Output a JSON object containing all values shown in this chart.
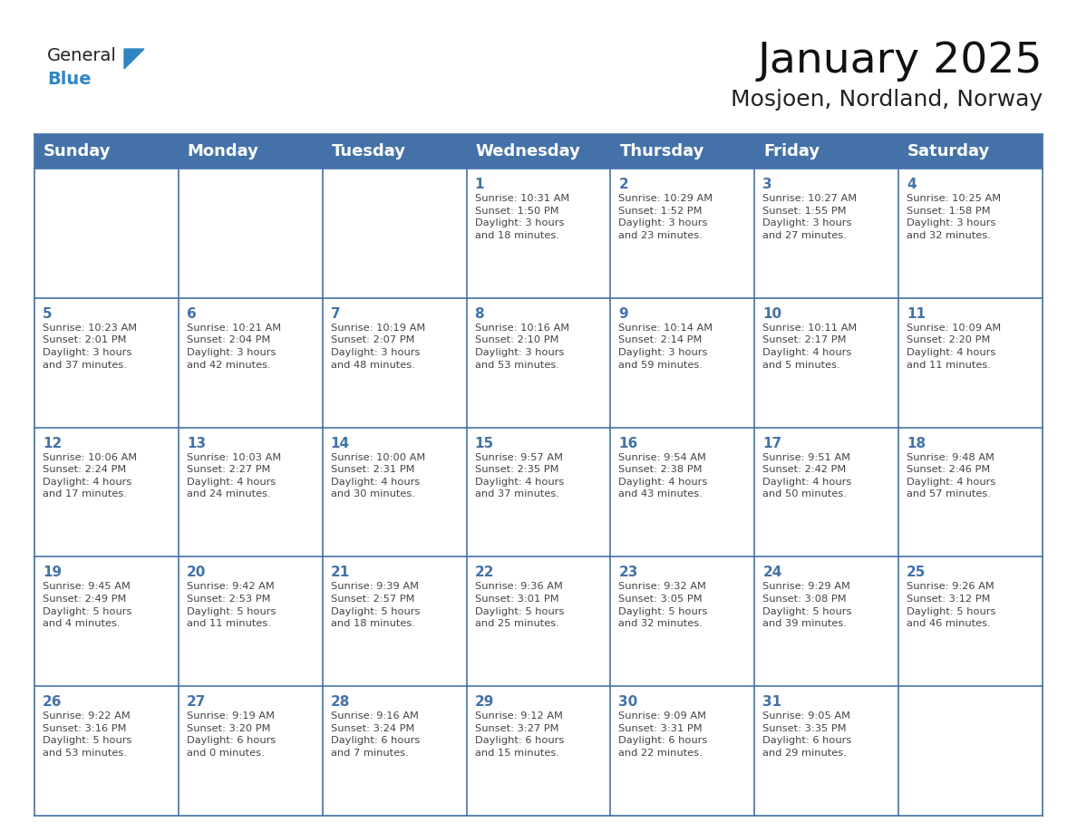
{
  "title": "January 2025",
  "subtitle": "Mosjoen, Nordland, Norway",
  "header_color": "#4472a8",
  "header_text_color": "#ffffff",
  "grid_line_color": "#4472a8",
  "day_number_color": "#4472a8",
  "text_color": "#444444",
  "days_of_week": [
    "Sunday",
    "Monday",
    "Tuesday",
    "Wednesday",
    "Thursday",
    "Friday",
    "Saturday"
  ],
  "title_fontsize": 34,
  "subtitle_fontsize": 18,
  "header_fontsize": 13,
  "day_num_fontsize": 11,
  "cell_fontsize": 8.2,
  "logo_general_color": "#222222",
  "logo_blue_color": "#2e86c1",
  "logo_triangle_color": "#2e86c1",
  "calendar": [
    [
      {
        "day": null,
        "info": null
      },
      {
        "day": null,
        "info": null
      },
      {
        "day": null,
        "info": null
      },
      {
        "day": 1,
        "info": "Sunrise: 10:31 AM\nSunset: 1:50 PM\nDaylight: 3 hours\nand 18 minutes."
      },
      {
        "day": 2,
        "info": "Sunrise: 10:29 AM\nSunset: 1:52 PM\nDaylight: 3 hours\nand 23 minutes."
      },
      {
        "day": 3,
        "info": "Sunrise: 10:27 AM\nSunset: 1:55 PM\nDaylight: 3 hours\nand 27 minutes."
      },
      {
        "day": 4,
        "info": "Sunrise: 10:25 AM\nSunset: 1:58 PM\nDaylight: 3 hours\nand 32 minutes."
      }
    ],
    [
      {
        "day": 5,
        "info": "Sunrise: 10:23 AM\nSunset: 2:01 PM\nDaylight: 3 hours\nand 37 minutes."
      },
      {
        "day": 6,
        "info": "Sunrise: 10:21 AM\nSunset: 2:04 PM\nDaylight: 3 hours\nand 42 minutes."
      },
      {
        "day": 7,
        "info": "Sunrise: 10:19 AM\nSunset: 2:07 PM\nDaylight: 3 hours\nand 48 minutes."
      },
      {
        "day": 8,
        "info": "Sunrise: 10:16 AM\nSunset: 2:10 PM\nDaylight: 3 hours\nand 53 minutes."
      },
      {
        "day": 9,
        "info": "Sunrise: 10:14 AM\nSunset: 2:14 PM\nDaylight: 3 hours\nand 59 minutes."
      },
      {
        "day": 10,
        "info": "Sunrise: 10:11 AM\nSunset: 2:17 PM\nDaylight: 4 hours\nand 5 minutes."
      },
      {
        "day": 11,
        "info": "Sunrise: 10:09 AM\nSunset: 2:20 PM\nDaylight: 4 hours\nand 11 minutes."
      }
    ],
    [
      {
        "day": 12,
        "info": "Sunrise: 10:06 AM\nSunset: 2:24 PM\nDaylight: 4 hours\nand 17 minutes."
      },
      {
        "day": 13,
        "info": "Sunrise: 10:03 AM\nSunset: 2:27 PM\nDaylight: 4 hours\nand 24 minutes."
      },
      {
        "day": 14,
        "info": "Sunrise: 10:00 AM\nSunset: 2:31 PM\nDaylight: 4 hours\nand 30 minutes."
      },
      {
        "day": 15,
        "info": "Sunrise: 9:57 AM\nSunset: 2:35 PM\nDaylight: 4 hours\nand 37 minutes."
      },
      {
        "day": 16,
        "info": "Sunrise: 9:54 AM\nSunset: 2:38 PM\nDaylight: 4 hours\nand 43 minutes."
      },
      {
        "day": 17,
        "info": "Sunrise: 9:51 AM\nSunset: 2:42 PM\nDaylight: 4 hours\nand 50 minutes."
      },
      {
        "day": 18,
        "info": "Sunrise: 9:48 AM\nSunset: 2:46 PM\nDaylight: 4 hours\nand 57 minutes."
      }
    ],
    [
      {
        "day": 19,
        "info": "Sunrise: 9:45 AM\nSunset: 2:49 PM\nDaylight: 5 hours\nand 4 minutes."
      },
      {
        "day": 20,
        "info": "Sunrise: 9:42 AM\nSunset: 2:53 PM\nDaylight: 5 hours\nand 11 minutes."
      },
      {
        "day": 21,
        "info": "Sunrise: 9:39 AM\nSunset: 2:57 PM\nDaylight: 5 hours\nand 18 minutes."
      },
      {
        "day": 22,
        "info": "Sunrise: 9:36 AM\nSunset: 3:01 PM\nDaylight: 5 hours\nand 25 minutes."
      },
      {
        "day": 23,
        "info": "Sunrise: 9:32 AM\nSunset: 3:05 PM\nDaylight: 5 hours\nand 32 minutes."
      },
      {
        "day": 24,
        "info": "Sunrise: 9:29 AM\nSunset: 3:08 PM\nDaylight: 5 hours\nand 39 minutes."
      },
      {
        "day": 25,
        "info": "Sunrise: 9:26 AM\nSunset: 3:12 PM\nDaylight: 5 hours\nand 46 minutes."
      }
    ],
    [
      {
        "day": 26,
        "info": "Sunrise: 9:22 AM\nSunset: 3:16 PM\nDaylight: 5 hours\nand 53 minutes."
      },
      {
        "day": 27,
        "info": "Sunrise: 9:19 AM\nSunset: 3:20 PM\nDaylight: 6 hours\nand 0 minutes."
      },
      {
        "day": 28,
        "info": "Sunrise: 9:16 AM\nSunset: 3:24 PM\nDaylight: 6 hours\nand 7 minutes."
      },
      {
        "day": 29,
        "info": "Sunrise: 9:12 AM\nSunset: 3:27 PM\nDaylight: 6 hours\nand 15 minutes."
      },
      {
        "day": 30,
        "info": "Sunrise: 9:09 AM\nSunset: 3:31 PM\nDaylight: 6 hours\nand 22 minutes."
      },
      {
        "day": 31,
        "info": "Sunrise: 9:05 AM\nSunset: 3:35 PM\nDaylight: 6 hours\nand 29 minutes."
      },
      {
        "day": null,
        "info": null
      }
    ]
  ]
}
